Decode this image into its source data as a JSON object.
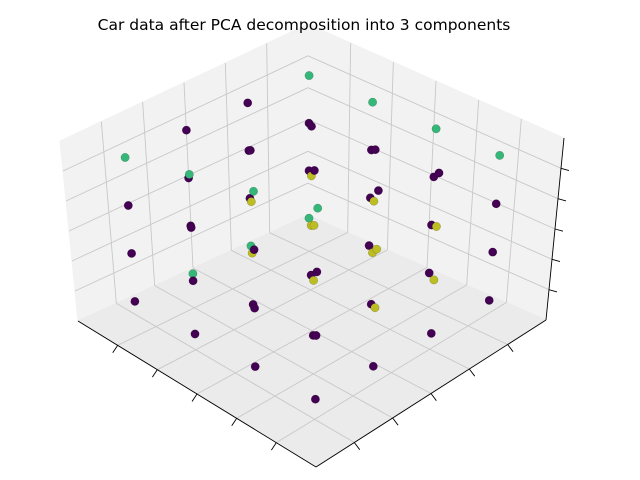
{
  "figure": {
    "background": "#ffffff"
  },
  "chart_data": {
    "type": "scatter3d",
    "title": "Car data after PCA decomposition into 3 components",
    "xlabel": "",
    "ylabel": "",
    "zlabel": "",
    "tick_labels_shown": false,
    "grid": true,
    "pane_color": "#f2f2f2",
    "grid_color": "#c8c8c8",
    "colormap": "viridis",
    "classes": [
      {
        "id": 0,
        "color": "#440154"
      },
      {
        "id": 1,
        "color": "#35b779"
      },
      {
        "id": 2,
        "color": "#bcbd22"
      }
    ],
    "points": [
      {
        "x": 1.0,
        "y": 1.0,
        "z": 1.0,
        "c": 0
      },
      {
        "x": 1.0,
        "y": 1.0,
        "z": 2.0,
        "c": 0
      },
      {
        "x": 1.0,
        "y": 1.0,
        "z": 3.0,
        "c": 0
      },
      {
        "x": 1.0,
        "y": 1.0,
        "z": 4.0,
        "c": 1
      },
      {
        "x": 1.0,
        "y": 2.0,
        "z": 1.0,
        "c": 0
      },
      {
        "x": 1.0,
        "y": 2.0,
        "z": 2.0,
        "c": 0
      },
      {
        "x": 1.0,
        "y": 2.0,
        "z": 3.0,
        "c": 0
      },
      {
        "x": 1.0,
        "y": 2.0,
        "z": 4.0,
        "c": 1
      },
      {
        "x": 1.0,
        "y": 3.0,
        "z": 1.0,
        "c": 0
      },
      {
        "x": 1.0,
        "y": 3.0,
        "z": 2.0,
        "c": 0
      },
      {
        "x": 1.0,
        "y": 3.0,
        "z": 3.0,
        "c": 0
      },
      {
        "x": 1.0,
        "y": 3.0,
        "z": 4.0,
        "c": 1
      },
      {
        "x": 1.0,
        "y": 4.0,
        "z": 1.0,
        "c": 0
      },
      {
        "x": 1.0,
        "y": 4.0,
        "z": 2.0,
        "c": 0
      },
      {
        "x": 1.0,
        "y": 4.0,
        "z": 3.0,
        "c": 0
      },
      {
        "x": 1.0,
        "y": 4.0,
        "z": 4.0,
        "c": 1
      },
      {
        "x": 2.0,
        "y": 1.0,
        "z": 1.0,
        "c": 0
      },
      {
        "x": 2.0,
        "y": 1.0,
        "z": 2.0,
        "c": 2
      },
      {
        "x": 2.0,
        "y": 1.0,
        "z": 3.0,
        "c": 2
      },
      {
        "x": 2.0,
        "y": 1.0,
        "z": 4.0,
        "c": 0
      },
      {
        "x": 2.0,
        "y": 2.0,
        "z": 1.0,
        "c": 0
      },
      {
        "x": 2.0,
        "y": 2.0,
        "z": 2.0,
        "c": 2
      },
      {
        "x": 2.0,
        "y": 2.0,
        "z": 3.0,
        "c": 2
      },
      {
        "x": 2.0,
        "y": 2.0,
        "z": 4.0,
        "c": 0
      },
      {
        "x": 2.0,
        "y": 3.0,
        "z": 1.0,
        "c": 0
      },
      {
        "x": 2.0,
        "y": 3.0,
        "z": 2.0,
        "c": 2
      },
      {
        "x": 2.0,
        "y": 3.0,
        "z": 3.0,
        "c": 2
      },
      {
        "x": 2.0,
        "y": 3.0,
        "z": 4.0,
        "c": 0
      },
      {
        "x": 2.0,
        "y": 4.0,
        "z": 1.0,
        "c": 1
      },
      {
        "x": 2.0,
        "y": 4.0,
        "z": 2.0,
        "c": 0
      },
      {
        "x": 2.0,
        "y": 4.0,
        "z": 3.0,
        "c": 0
      },
      {
        "x": 2.0,
        "y": 4.0,
        "z": 4.0,
        "c": 0
      },
      {
        "x": 3.0,
        "y": 1.0,
        "z": 1.0,
        "c": 0
      },
      {
        "x": 3.0,
        "y": 1.0,
        "z": 2.0,
        "c": 2
      },
      {
        "x": 3.0,
        "y": 1.0,
        "z": 3.0,
        "c": 2
      },
      {
        "x": 3.0,
        "y": 1.0,
        "z": 4.0,
        "c": 0
      },
      {
        "x": 3.0,
        "y": 2.0,
        "z": 1.0,
        "c": 0
      },
      {
        "x": 3.0,
        "y": 2.0,
        "z": 2.0,
        "c": 2
      },
      {
        "x": 3.0,
        "y": 2.0,
        "z": 3.0,
        "c": 2
      },
      {
        "x": 3.0,
        "y": 2.0,
        "z": 4.0,
        "c": 0
      },
      {
        "x": 3.0,
        "y": 3.0,
        "z": 1.0,
        "c": 0
      },
      {
        "x": 3.0,
        "y": 3.0,
        "z": 2.0,
        "c": 2
      },
      {
        "x": 3.0,
        "y": 3.0,
        "z": 3.0,
        "c": 2
      },
      {
        "x": 3.0,
        "y": 3.0,
        "z": 4.0,
        "c": 0
      },
      {
        "x": 3.0,
        "y": 4.0,
        "z": 1.0,
        "c": 1
      },
      {
        "x": 3.0,
        "y": 4.0,
        "z": 2.0,
        "c": 0
      },
      {
        "x": 3.0,
        "y": 4.0,
        "z": 3.0,
        "c": 0
      },
      {
        "x": 3.0,
        "y": 4.0,
        "z": 4.0,
        "c": 0
      },
      {
        "x": 4.0,
        "y": 1.0,
        "z": 1.0,
        "c": 0
      },
      {
        "x": 4.0,
        "y": 1.0,
        "z": 2.0,
        "c": 0
      },
      {
        "x": 4.0,
        "y": 1.0,
        "z": 3.0,
        "c": 0
      },
      {
        "x": 4.0,
        "y": 1.0,
        "z": 4.0,
        "c": 1
      },
      {
        "x": 4.0,
        "y": 2.0,
        "z": 1.0,
        "c": 0
      },
      {
        "x": 4.0,
        "y": 2.0,
        "z": 2.0,
        "c": 0
      },
      {
        "x": 4.0,
        "y": 2.0,
        "z": 3.0,
        "c": 0
      },
      {
        "x": 4.0,
        "y": 2.0,
        "z": 4.0,
        "c": 1
      },
      {
        "x": 4.0,
        "y": 3.0,
        "z": 1.0,
        "c": 0
      },
      {
        "x": 4.0,
        "y": 3.0,
        "z": 2.0,
        "c": 0
      },
      {
        "x": 4.0,
        "y": 3.0,
        "z": 3.0,
        "c": 0
      },
      {
        "x": 4.0,
        "y": 3.0,
        "z": 4.0,
        "c": 1
      },
      {
        "x": 4.0,
        "y": 4.0,
        "z": 1.0,
        "c": 1
      },
      {
        "x": 4.0,
        "y": 4.0,
        "z": 2.0,
        "c": 0
      },
      {
        "x": 4.0,
        "y": 4.0,
        "z": 3.0,
        "c": 0
      },
      {
        "x": 4.0,
        "y": 4.0,
        "z": 4.0,
        "c": 1
      }
    ]
  }
}
